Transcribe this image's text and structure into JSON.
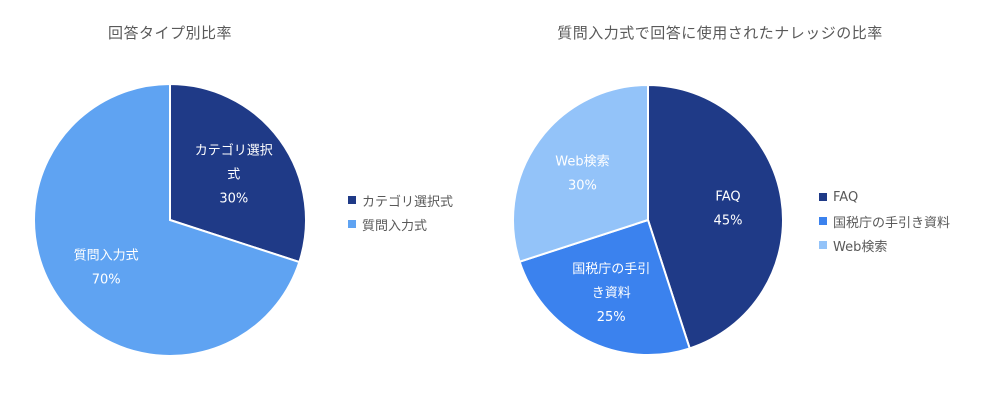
{
  "chart_data": [
    {
      "type": "pie",
      "title": "回答タイプ別比率",
      "categories": [
        "カテゴリ選択式",
        "質問入力式"
      ],
      "values": [
        30,
        70
      ],
      "labels": [
        [
          "カテゴリ選択",
          "式",
          "30%"
        ],
        [
          "質問入力式",
          "70%"
        ]
      ],
      "colors": [
        "#1f3a87",
        "#5fa3f2"
      ],
      "legend_position": "right",
      "start_angle_deg": 0,
      "direction": "clockwise"
    },
    {
      "type": "pie",
      "title": "質問入力式で回答に使用されたナレッジの比率",
      "categories": [
        "FAQ",
        "国税庁の手引き資料",
        "Web検索"
      ],
      "values": [
        45,
        25,
        30
      ],
      "labels": [
        [
          "FAQ",
          "45%"
        ],
        [
          "国税庁の手引",
          "き資料",
          "25%"
        ],
        [
          "Web検索",
          "30%"
        ]
      ],
      "colors": [
        "#1f3a87",
        "#3b82ee",
        "#93c3f9"
      ],
      "legend_position": "right",
      "start_angle_deg": 0,
      "direction": "clockwise"
    }
  ],
  "charts": [
    {
      "title": "回答タイプ別比率",
      "legend": [
        {
          "label": "カテゴリ選択式",
          "color": "#1f3a87"
        },
        {
          "label": "質問入力式",
          "color": "#5fa3f2"
        }
      ]
    },
    {
      "title": "質問入力式で回答に使用されたナレッジの比率",
      "legend": [
        {
          "label": "FAQ",
          "color": "#1f3a87"
        },
        {
          "label": "国税庁の手引き資料",
          "color": "#3b82ee"
        },
        {
          "label": "Web検索",
          "color": "#93c3f9"
        }
      ]
    }
  ]
}
